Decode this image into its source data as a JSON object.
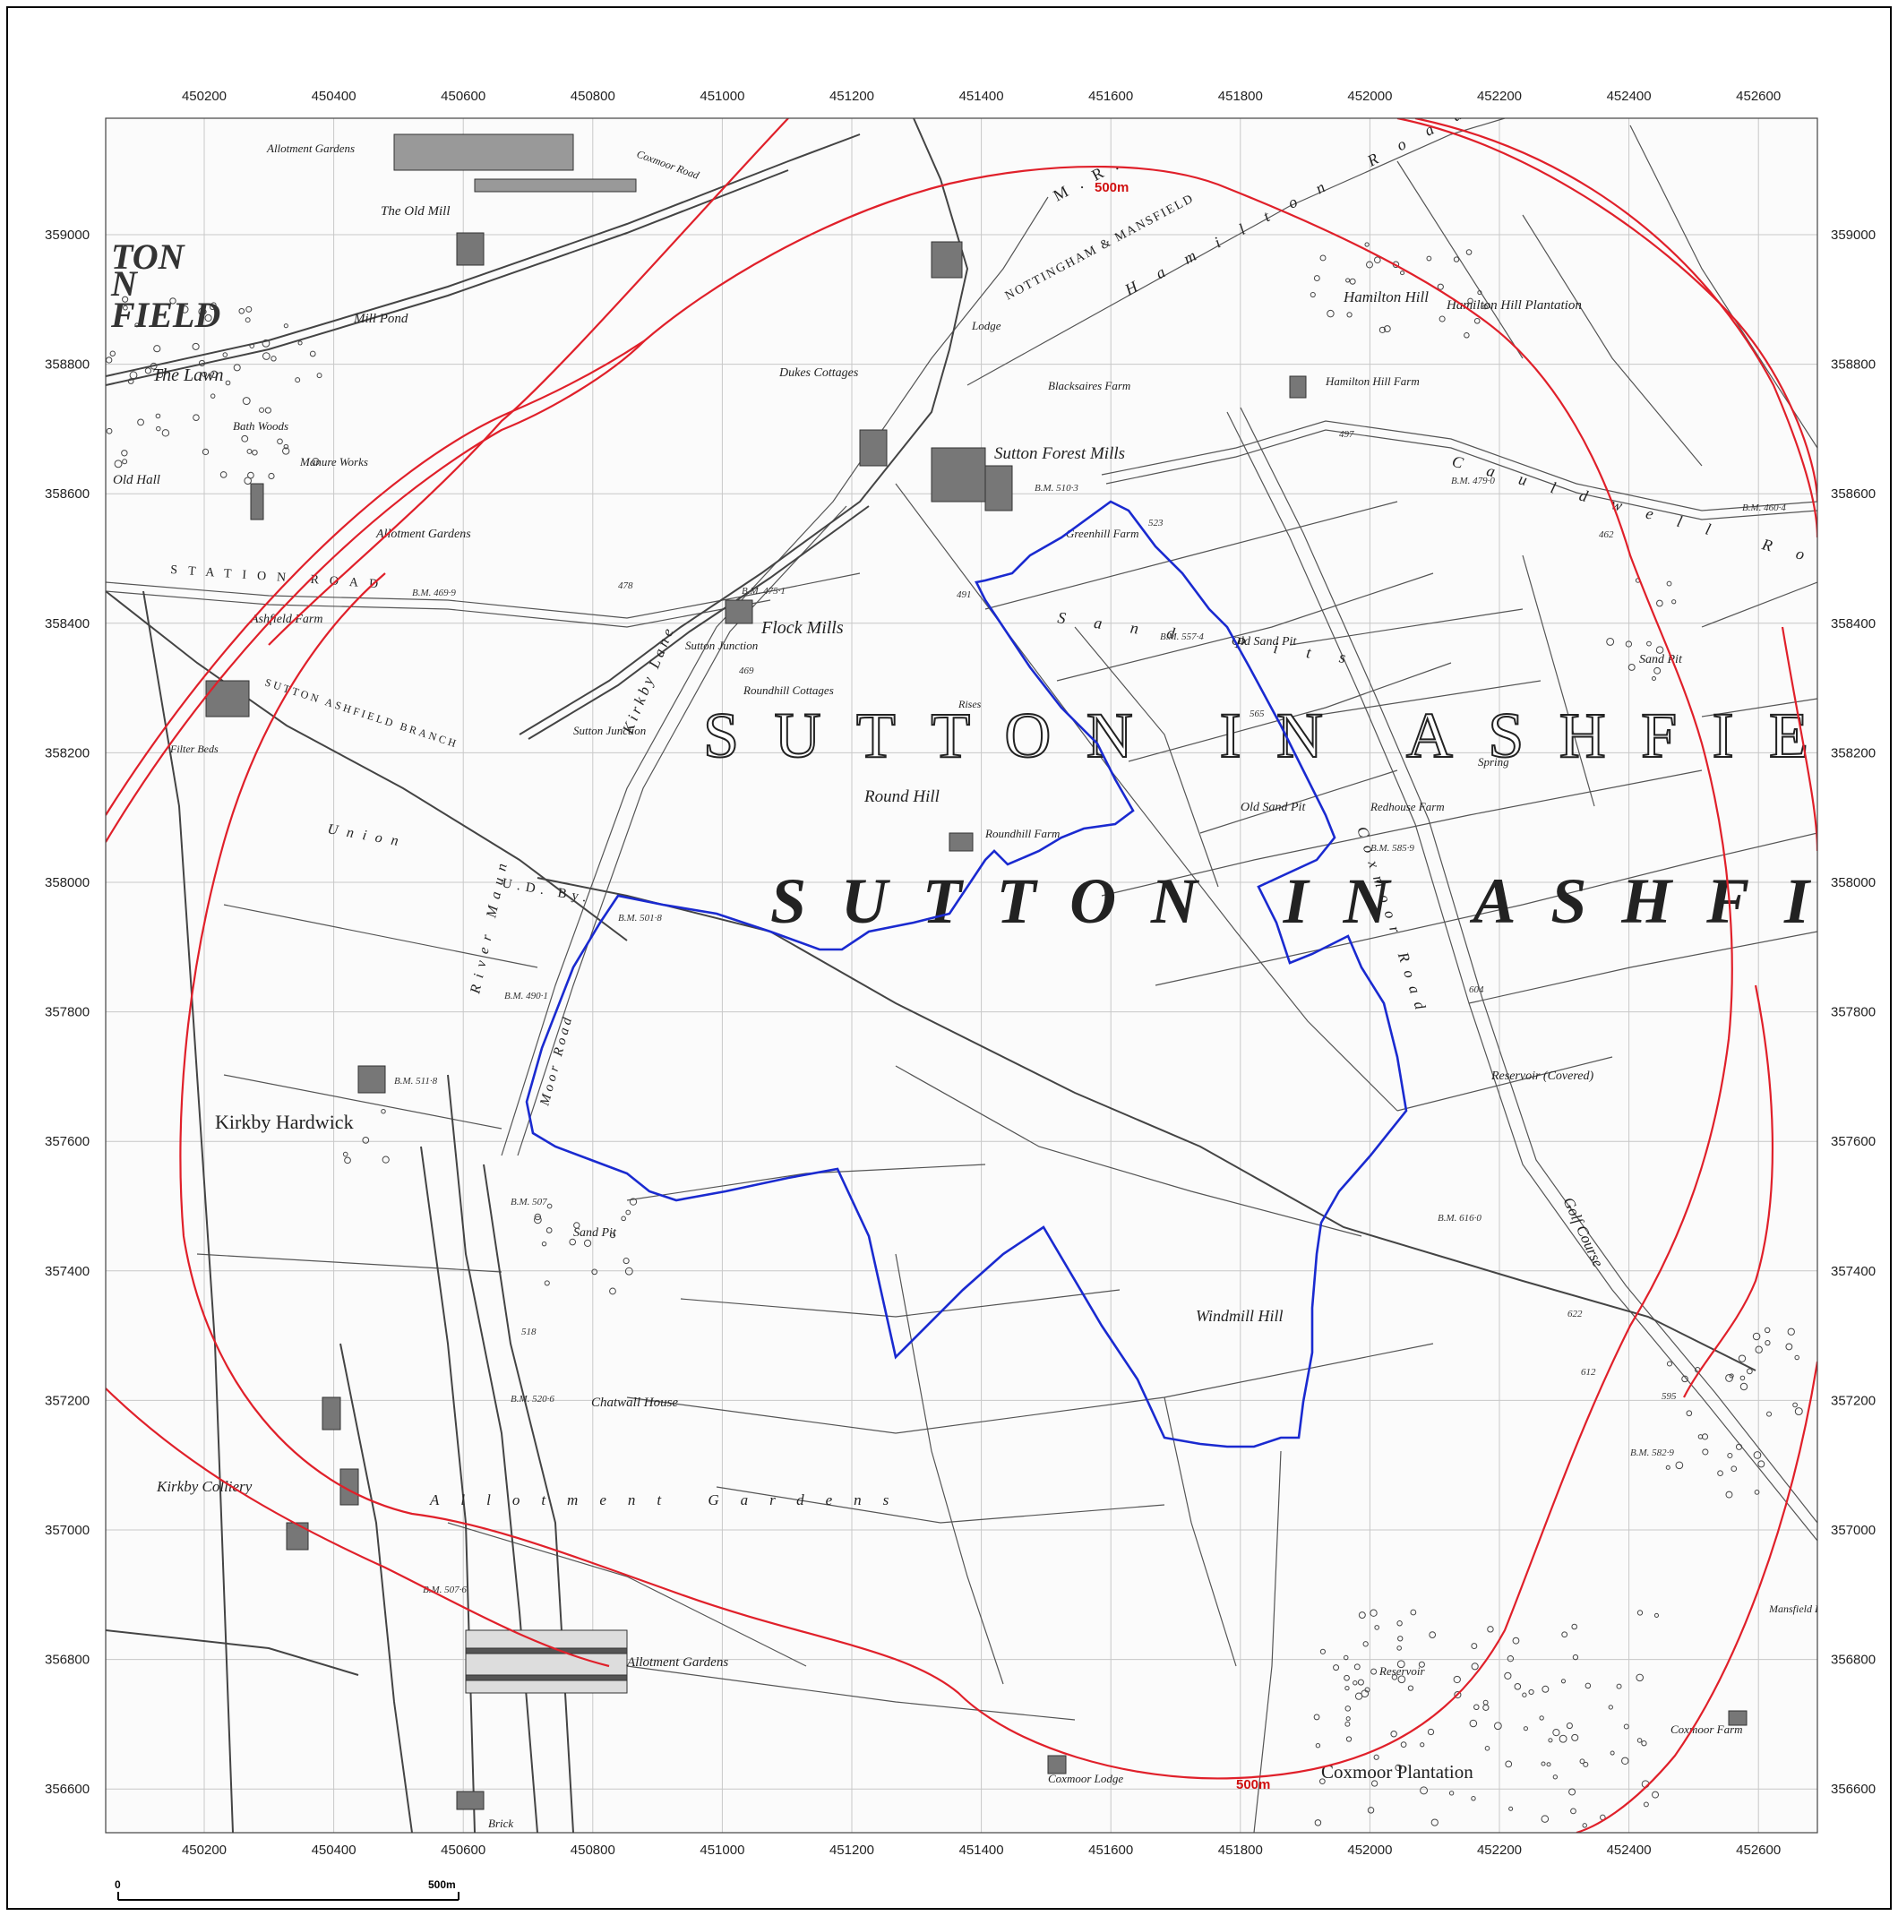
{
  "map": {
    "colors": {
      "buffer": "#e0202a",
      "site": "#1a2ad0",
      "grid": "#c8c8c8",
      "linework": "#555555"
    },
    "easting_ticks": [
      "450200",
      "450400",
      "450600",
      "450800",
      "451000",
      "451200",
      "451400",
      "451600",
      "451800",
      "452000",
      "452200",
      "452400",
      "452600"
    ],
    "northing_ticks": [
      "359000",
      "358800",
      "358600",
      "358400",
      "358200",
      "358000",
      "357800",
      "357600",
      "357400",
      "357200",
      "357000",
      "356800",
      "356600"
    ],
    "buffer_labels": [
      "500m",
      "500m"
    ],
    "scale_bar": {
      "start": "0",
      "end": "500m"
    },
    "area_labels": {
      "parish_upper": "SUTTON IN ASHFIE",
      "parish_lower": "SUTTON IN ASHFI",
      "town_a": "TON",
      "town_b": "N",
      "town_c": "FIELD"
    },
    "places": {
      "the_lawn": "The Lawn",
      "old_hall": "Old Hall",
      "mill_pond": "Mill Pond",
      "old_mill": "The Old Mill",
      "allotment_top": "Allotment Gardens",
      "allotment_mid": "Allotment Gardens",
      "bath_woods": "Bath Woods",
      "manure": "Manure Works",
      "ashfield_farm": "Ashfield Farm",
      "dukes": "Dukes Cottages",
      "sutton_forest": "Sutton Forest Mills",
      "blacksaires": "Blacksaires Farm",
      "lodge": "Lodge",
      "hamilton_hill": "Hamilton Hill",
      "hamilton_plantation": "Hamilton Hill Plantation",
      "hamilton_farm": "Hamilton Hill Farm",
      "greenhill": "Greenhill Farm",
      "flock_mills": "Flock Mills",
      "sutton_junction": "Sutton Junction",
      "roundhill_cottages": "Roundhill Cottages",
      "round_hill": "Round Hill",
      "roundhill_farm": "Roundhill Farm",
      "old_sand_pit_1": "Old Sand Pit",
      "old_sand_pit_2": "Old Sand Pit",
      "redhouse": "Redhouse Farm",
      "sand_pit_e": "Sand Pit",
      "spring": "Spring",
      "reservoir": "Reservoir (Covered)",
      "golf": "Golf Course",
      "kirkby_hardwick": "Kirkby Hardwick",
      "sand_pit_s": "Sand Pit",
      "windmill": "Windmill Hill",
      "chatwall": "Chatwall House",
      "kirkby_colliery": "Kirkby Colliery",
      "allotment_bottom": "Allotment Gardens",
      "allotment_gardens_words": "Allotment Gardens",
      "reservoir_s": "Reservoir",
      "coxmoor_lodge": "Coxmoor Lodge",
      "coxmoor_plantation": "Coxmoor Plantation",
      "coxmoor_farm": "Coxmoor Farm",
      "brick": "Brick",
      "filter_beds": "Filter Beds",
      "sutton_junction_tank": "Sutton Junction",
      "union": "Union",
      "rises": "Rises",
      "mansfield_derby": "Mansfield Derby"
    },
    "roads": {
      "station_road": "STATION ROAD",
      "hamilton_road": "Hamilton Road",
      "cauldwell_road": "Cauldwell Road",
      "coxmoor_road": "Coxmoor Road",
      "kirkby_lane": "Kirkby Lane",
      "railway": "NOTTINGHAM & MANSFIELD",
      "mr": "M.R.",
      "coxmoor_road_top": "Coxmoor Road",
      "sand_pits": "Sand Pits",
      "sutton_ashfield_branch": "SUTTON ASHFIELD BRANCH",
      "river_maun": "River Maun",
      "udby": "U.D. By.",
      "moor_road": "Moor Road"
    },
    "benchmarks": {
      "bm1": "B.M. 510·3",
      "bm2": "B.M. 479·0",
      "bm3": "B.M. 460·4",
      "bm4": "B.M. 557·4",
      "bm5": "B.M. 585·9",
      "bm6": "B.M. 501·8",
      "bm7": "B.M. 490·1",
      "bm8": "B.M. 511·8",
      "bm9": "B.M. 507",
      "bm10": "B.M. 520·6",
      "bm11": "B.M. 507·6",
      "bm12": "B.M. 616·0",
      "bm13": "B.M. 582·9",
      "bm14": "B.M. 469·9",
      "bm15": "B.M. 475·1",
      "h1": "462",
      "h2": "497",
      "h3": "523",
      "h4": "565",
      "h5": "604",
      "h6": "622",
      "h7": "612",
      "h8": "595",
      "h9": "491",
      "h10": "478",
      "h11": "469",
      "h12": "518"
    }
  }
}
